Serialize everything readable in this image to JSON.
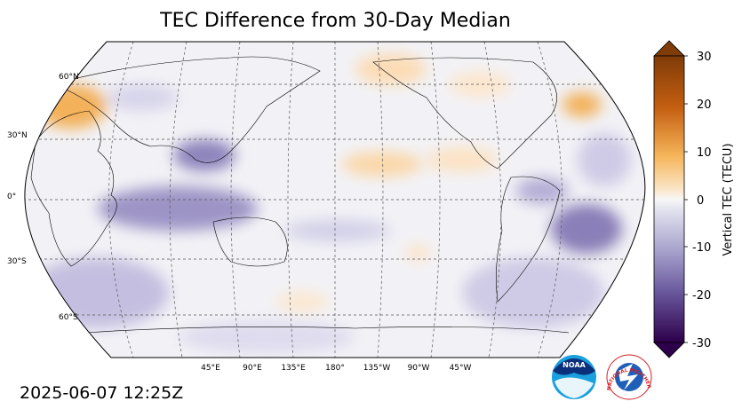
{
  "title": "TEC Difference from 30-Day Median",
  "timestamp": "2025-06-07 12:25Z",
  "map": {
    "projection": "robinson",
    "central_longitude": 180,
    "lat_labels": [
      "60°N",
      "30°N",
      "0°",
      "30°S",
      "60°S"
    ],
    "lon_labels": [
      "45°E",
      "90°E",
      "135°E",
      "180°",
      "135°W",
      "90°W",
      "45°W"
    ],
    "gridlines": true
  },
  "colorbar": {
    "label": "Vertical TEC (TECU)",
    "ticks": [
      "30",
      "20",
      "10",
      "0",
      "-10",
      "-20",
      "-30"
    ],
    "range": [
      -30,
      30
    ],
    "colors": {
      "max": "#7f3b08",
      "positive": "#e08214",
      "neutral": "#f7f7f7",
      "negative": "#8073ac",
      "min": "#2d004b"
    }
  },
  "logos": {
    "noaa_text": "NOAA",
    "nws_text": "NATIONAL WEATHER SERVICE"
  }
}
